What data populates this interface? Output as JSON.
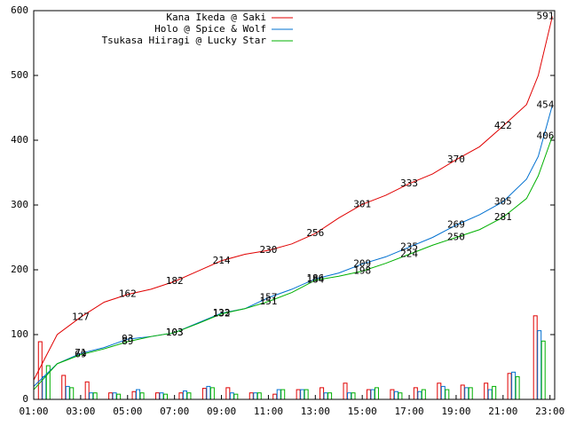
{
  "chart_data": {
    "type": "line",
    "xlim": [
      1,
      23.2
    ],
    "ylim": [
      0,
      600
    ],
    "xticks": [
      {
        "value": 1,
        "label": "01:00"
      },
      {
        "value": 3,
        "label": "03:00"
      },
      {
        "value": 5,
        "label": "05:00"
      },
      {
        "value": 7,
        "label": "07:00"
      },
      {
        "value": 9,
        "label": "09:00"
      },
      {
        "value": 11,
        "label": "11:00"
      },
      {
        "value": 13,
        "label": "13:00"
      },
      {
        "value": 15,
        "label": "15:00"
      },
      {
        "value": 17,
        "label": "17:00"
      },
      {
        "value": 19,
        "label": "19:00"
      },
      {
        "value": 21,
        "label": "21:00"
      },
      {
        "value": 23,
        "label": "23:00"
      }
    ],
    "yticks": [
      0,
      100,
      200,
      300,
      400,
      500,
      600
    ],
    "x": [
      1,
      2,
      3,
      4,
      5,
      6,
      7,
      8,
      9,
      10,
      11,
      12,
      13,
      14,
      15,
      16,
      17,
      18,
      19,
      20,
      21,
      22,
      22.5,
      23.1
    ],
    "series": [
      {
        "name": "Kana Ikeda @ Saki",
        "color": "#e00000",
        "values": [
          30,
          100,
          127,
          150,
          162,
          170,
          182,
          198,
          214,
          224,
          230,
          240,
          256,
          280,
          301,
          315,
          333,
          348,
          370,
          390,
          422,
          455,
          500,
          591
        ],
        "labels": [
          {
            "x": 3,
            "value": 127
          },
          {
            "x": 5,
            "value": 162
          },
          {
            "x": 7,
            "value": 182
          },
          {
            "x": 9,
            "value": 214
          },
          {
            "x": 11,
            "value": 230
          },
          {
            "x": 13,
            "value": 256
          },
          {
            "x": 15,
            "value": 301
          },
          {
            "x": 17,
            "value": 333
          },
          {
            "x": 19,
            "value": 370
          },
          {
            "x": 21,
            "value": 422
          },
          {
            "x": 22.8,
            "value": 591
          }
        ]
      },
      {
        "name": "Holo @ Spice & Wolf",
        "color": "#0070d0",
        "values": [
          20,
          55,
          71,
          80,
          93,
          97,
          103,
          118,
          133,
          140,
          157,
          170,
          186,
          195,
          209,
          220,
          235,
          250,
          269,
          285,
          305,
          340,
          375,
          454
        ],
        "labels": [
          {
            "x": 3,
            "value": 71
          },
          {
            "x": 5,
            "value": 93
          },
          {
            "x": 7,
            "value": 103
          },
          {
            "x": 9,
            "value": 133
          },
          {
            "x": 11,
            "value": 157
          },
          {
            "x": 13,
            "value": 186
          },
          {
            "x": 15,
            "value": 209
          },
          {
            "x": 17,
            "value": 235
          },
          {
            "x": 19,
            "value": 269
          },
          {
            "x": 21,
            "value": 305
          },
          {
            "x": 22.8,
            "value": 454
          }
        ]
      },
      {
        "name": "Tsukasa Hiiragi @ Lucky Star",
        "color": "#00b000",
        "values": [
          15,
          55,
          69,
          78,
          89,
          97,
          103,
          117,
          132,
          140,
          151,
          165,
          184,
          190,
          198,
          210,
          224,
          238,
          250,
          262,
          281,
          310,
          345,
          406
        ],
        "labels": [
          {
            "x": 3,
            "value": 69
          },
          {
            "x": 5,
            "value": 89
          },
          {
            "x": 7,
            "value": 103
          },
          {
            "x": 9,
            "value": 132
          },
          {
            "x": 11,
            "value": 151
          },
          {
            "x": 13,
            "value": 184
          },
          {
            "x": 15,
            "value": 198
          },
          {
            "x": 17,
            "value": 224
          },
          {
            "x": 19,
            "value": 250
          },
          {
            "x": 21,
            "value": 281
          },
          {
            "x": 22.8,
            "value": 406
          }
        ]
      }
    ],
    "bar_x": [
      1.2,
      2.2,
      3.2,
      4.2,
      5.2,
      6.2,
      7.2,
      8.2,
      9.2,
      10.2,
      11.2,
      12.2,
      13.2,
      14.2,
      15.2,
      16.2,
      17.2,
      18.2,
      19.2,
      20.2,
      21.2,
      22.3
    ],
    "bar_series": [
      {
        "color": "#e00000",
        "values": [
          89,
          37,
          27,
          10,
          12,
          10,
          10,
          17,
          18,
          10,
          8,
          15,
          18,
          25,
          15,
          15,
          18,
          25,
          22,
          25,
          40,
          129
        ]
      },
      {
        "color": "#0070d0",
        "values": [
          35,
          20,
          10,
          10,
          15,
          10,
          13,
          20,
          10,
          10,
          15,
          15,
          10,
          10,
          15,
          12,
          12,
          20,
          18,
          15,
          42,
          106
        ]
      },
      {
        "color": "#00b000",
        "values": [
          52,
          18,
          10,
          8,
          10,
          8,
          10,
          18,
          8,
          10,
          15,
          15,
          10,
          10,
          18,
          10,
          15,
          15,
          18,
          20,
          35,
          90
        ]
      }
    ]
  }
}
